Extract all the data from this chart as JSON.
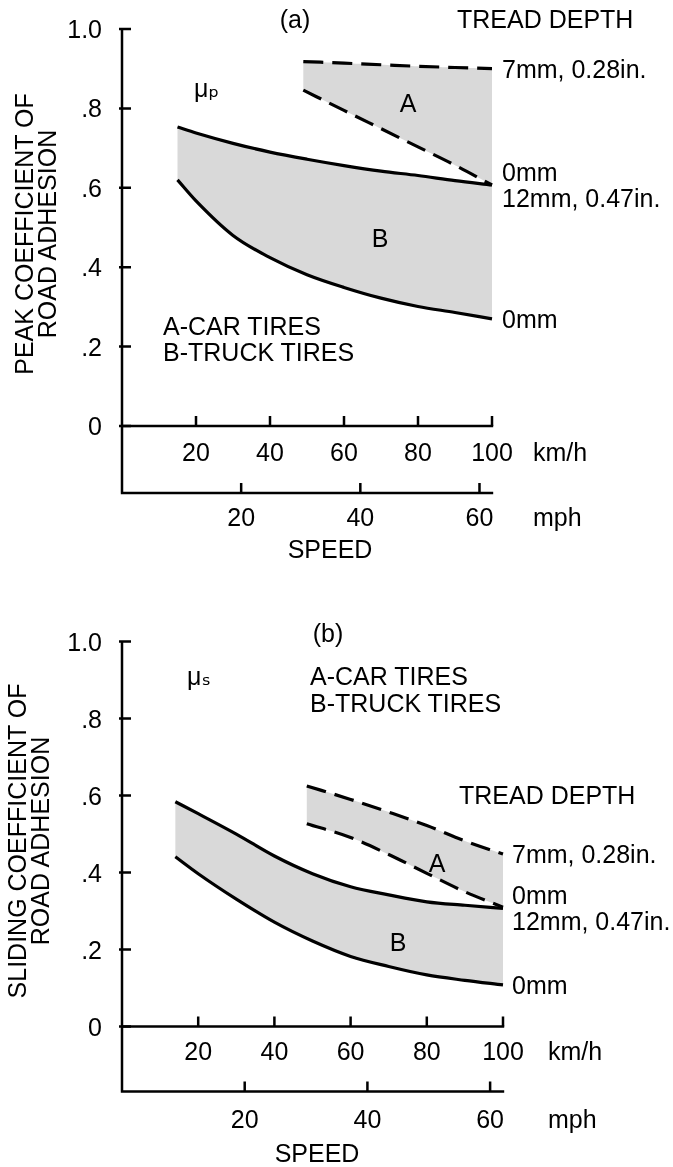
{
  "chart_data": [
    {
      "type": "line",
      "title": "(a)",
      "ylabel": "PEAK COEFFICIENT OF ROAD ADHESION",
      "xlabel": "km/h",
      "x2label": "mph",
      "legend": "right",
      "legend_title": "TREAD DEPTH",
      "annotations": [
        "μₚ",
        "A-CAR TIRES",
        "B-TRUCK TIRES",
        "SPEED",
        "A",
        "B"
      ],
      "xlim": [
        0,
        100
      ],
      "xticks": [
        20,
        40,
        60,
        80,
        100
      ],
      "x2lim": [
        0,
        62.1
      ],
      "x2ticks": [
        20,
        40,
        60
      ],
      "ylim": [
        0,
        1
      ],
      "yticks": [
        0,
        {
          "value": 0.2,
          "label": ".2"
        },
        {
          "value": 0.4,
          "label": ".4"
        },
        {
          "value": 0.6,
          "label": ".6"
        },
        {
          "value": 0.8,
          "label": ".8"
        },
        {
          "value": 1,
          "label": "1.0"
        }
      ],
      "series": [
        {
          "name": "7mm, 0.28in.",
          "color": "#000000",
          "line_style": "dashed",
          "x": [
            49,
            60,
            70,
            80,
            90,
            100
          ],
          "values": [
            0.918,
            0.914,
            0.91,
            0.906,
            0.903,
            0.9
          ],
          "lower": [
            0.846,
            0.795,
            0.749,
            0.703,
            0.657,
            0.607
          ],
          "upper": [
            0.918,
            0.914,
            0.91,
            0.906,
            0.903,
            0.9
          ]
        },
        {
          "name": "0mm",
          "color": "#000000",
          "line_style": "dashed",
          "x": [
            49,
            60,
            70,
            80,
            90,
            100
          ],
          "values": [
            0.846,
            0.795,
            0.749,
            0.703,
            0.657,
            0.607
          ]
        },
        {
          "name": "12mm, 0.47in.",
          "color": "#000000",
          "line_style": "solid",
          "x": [
            15,
            20,
            30,
            40,
            50,
            60,
            70,
            80,
            90,
            100
          ],
          "values": [
            0.753,
            0.738,
            0.712,
            0.69,
            0.672,
            0.656,
            0.642,
            0.631,
            0.618,
            0.607
          ],
          "lower": [
            0.62,
            0.567,
            0.48,
            0.424,
            0.381,
            0.349,
            0.322,
            0.301,
            0.286,
            0.27
          ],
          "upper": [
            0.753,
            0.738,
            0.712,
            0.69,
            0.672,
            0.656,
            0.642,
            0.631,
            0.618,
            0.607
          ]
        },
        {
          "name": "0mm",
          "color": "#000000",
          "line_style": "solid",
          "x": [
            15,
            20,
            30,
            40,
            50,
            60,
            70,
            80,
            90,
            100
          ],
          "values": [
            0.62,
            0.567,
            0.48,
            0.424,
            0.381,
            0.349,
            0.322,
            0.301,
            0.286,
            0.27
          ]
        }
      ]
    },
    {
      "type": "line",
      "title": "(b)",
      "ylabel": "SLIDING COEFFICIENT OF ROAD ADHESION",
      "xlabel": "km/h",
      "x2label": "mph",
      "legend": "right",
      "legend_title": "TREAD DEPTH",
      "annotations": [
        "μₛ",
        "A-CAR TIRES",
        "B-TRUCK TIRES",
        "SPEED",
        "A",
        "B"
      ],
      "xlim": [
        0,
        100
      ],
      "xticks": [
        20,
        40,
        60,
        80,
        100
      ],
      "x2lim": [
        0,
        62.1
      ],
      "x2ticks": [
        20,
        40,
        60
      ],
      "ylim": [
        0,
        1
      ],
      "yticks": [
        0,
        {
          "value": 0.2,
          "label": ".2"
        },
        {
          "value": 0.4,
          "label": ".4"
        },
        {
          "value": 0.6,
          "label": ".6"
        },
        {
          "value": 0.8,
          "label": ".8"
        },
        {
          "value": 1,
          "label": "1.0"
        }
      ],
      "series": [
        {
          "name": "7mm, 0.28in.",
          "color": "#000000",
          "line_style": "dashed",
          "x": [
            48.5,
            60,
            70,
            80,
            90,
            100
          ],
          "values": [
            0.625,
            0.59,
            0.557,
            0.522,
            0.482,
            0.448
          ],
          "lower": [
            0.527,
            0.491,
            0.447,
            0.398,
            0.35,
            0.31
          ],
          "upper": [
            0.625,
            0.59,
            0.557,
            0.522,
            0.482,
            0.448
          ]
        },
        {
          "name": "0mm",
          "color": "#000000",
          "line_style": "dashed",
          "x": [
            48.5,
            60,
            70,
            80,
            90,
            100
          ],
          "values": [
            0.527,
            0.491,
            0.447,
            0.398,
            0.35,
            0.31
          ]
        },
        {
          "name": "12mm, 0.47in.",
          "color": "#000000",
          "line_style": "solid",
          "x": [
            14,
            20,
            30,
            40,
            50,
            60,
            70,
            80,
            90,
            100
          ],
          "values": [
            0.584,
            0.553,
            0.5,
            0.443,
            0.397,
            0.363,
            0.342,
            0.324,
            0.315,
            0.307
          ],
          "lower": [
            0.441,
            0.397,
            0.331,
            0.271,
            0.222,
            0.182,
            0.156,
            0.134,
            0.12,
            0.108
          ],
          "upper": [
            0.584,
            0.553,
            0.5,
            0.443,
            0.397,
            0.363,
            0.342,
            0.324,
            0.315,
            0.307
          ]
        },
        {
          "name": "0mm",
          "color": "#000000",
          "line_style": "solid",
          "x": [
            14,
            20,
            30,
            40,
            50,
            60,
            70,
            80,
            90,
            100
          ],
          "values": [
            0.441,
            0.397,
            0.331,
            0.271,
            0.222,
            0.182,
            0.156,
            0.134,
            0.12,
            0.108
          ]
        }
      ]
    }
  ]
}
